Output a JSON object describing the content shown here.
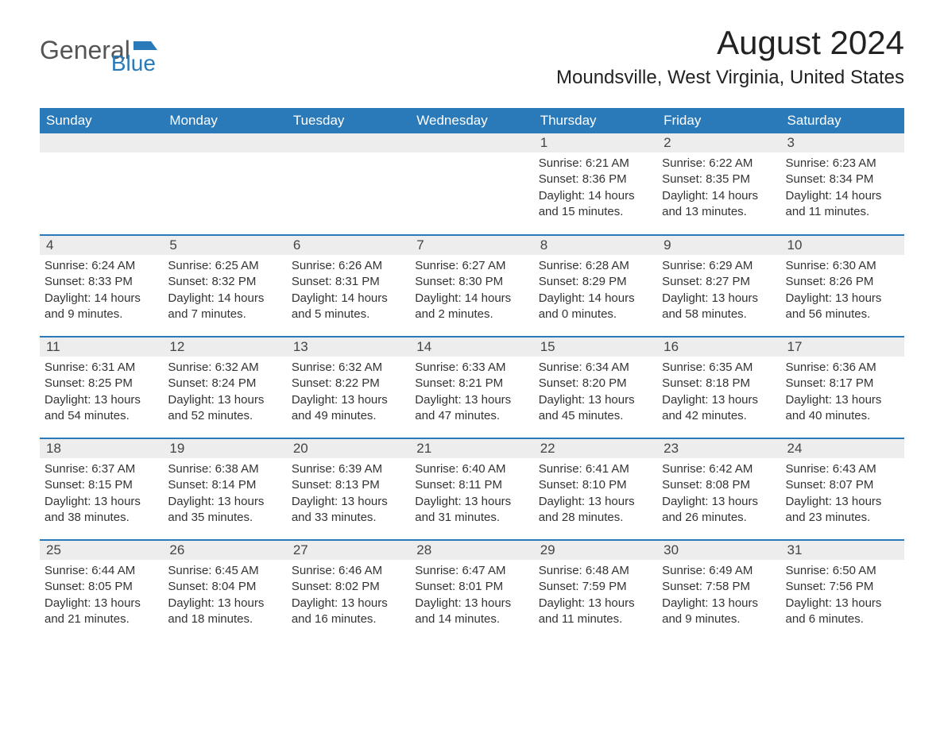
{
  "logo": {
    "text1": "General",
    "text2": "Blue"
  },
  "title": "August 2024",
  "location": "Moundsville, West Virginia, United States",
  "colors": {
    "header_bg": "#2a7ab9",
    "header_text": "#ffffff",
    "daynum_bg": "#ededed",
    "row_border": "#2a7ab9",
    "body_text": "#333333",
    "page_bg": "#ffffff"
  },
  "weekdays": [
    "Sunday",
    "Monday",
    "Tuesday",
    "Wednesday",
    "Thursday",
    "Friday",
    "Saturday"
  ],
  "weeks": [
    [
      null,
      null,
      null,
      null,
      {
        "n": "1",
        "sunrise": "Sunrise: 6:21 AM",
        "sunset": "Sunset: 8:36 PM",
        "daylight": "Daylight: 14 hours and 15 minutes."
      },
      {
        "n": "2",
        "sunrise": "Sunrise: 6:22 AM",
        "sunset": "Sunset: 8:35 PM",
        "daylight": "Daylight: 14 hours and 13 minutes."
      },
      {
        "n": "3",
        "sunrise": "Sunrise: 6:23 AM",
        "sunset": "Sunset: 8:34 PM",
        "daylight": "Daylight: 14 hours and 11 minutes."
      }
    ],
    [
      {
        "n": "4",
        "sunrise": "Sunrise: 6:24 AM",
        "sunset": "Sunset: 8:33 PM",
        "daylight": "Daylight: 14 hours and 9 minutes."
      },
      {
        "n": "5",
        "sunrise": "Sunrise: 6:25 AM",
        "sunset": "Sunset: 8:32 PM",
        "daylight": "Daylight: 14 hours and 7 minutes."
      },
      {
        "n": "6",
        "sunrise": "Sunrise: 6:26 AM",
        "sunset": "Sunset: 8:31 PM",
        "daylight": "Daylight: 14 hours and 5 minutes."
      },
      {
        "n": "7",
        "sunrise": "Sunrise: 6:27 AM",
        "sunset": "Sunset: 8:30 PM",
        "daylight": "Daylight: 14 hours and 2 minutes."
      },
      {
        "n": "8",
        "sunrise": "Sunrise: 6:28 AM",
        "sunset": "Sunset: 8:29 PM",
        "daylight": "Daylight: 14 hours and 0 minutes."
      },
      {
        "n": "9",
        "sunrise": "Sunrise: 6:29 AM",
        "sunset": "Sunset: 8:27 PM",
        "daylight": "Daylight: 13 hours and 58 minutes."
      },
      {
        "n": "10",
        "sunrise": "Sunrise: 6:30 AM",
        "sunset": "Sunset: 8:26 PM",
        "daylight": "Daylight: 13 hours and 56 minutes."
      }
    ],
    [
      {
        "n": "11",
        "sunrise": "Sunrise: 6:31 AM",
        "sunset": "Sunset: 8:25 PM",
        "daylight": "Daylight: 13 hours and 54 minutes."
      },
      {
        "n": "12",
        "sunrise": "Sunrise: 6:32 AM",
        "sunset": "Sunset: 8:24 PM",
        "daylight": "Daylight: 13 hours and 52 minutes."
      },
      {
        "n": "13",
        "sunrise": "Sunrise: 6:32 AM",
        "sunset": "Sunset: 8:22 PM",
        "daylight": "Daylight: 13 hours and 49 minutes."
      },
      {
        "n": "14",
        "sunrise": "Sunrise: 6:33 AM",
        "sunset": "Sunset: 8:21 PM",
        "daylight": "Daylight: 13 hours and 47 minutes."
      },
      {
        "n": "15",
        "sunrise": "Sunrise: 6:34 AM",
        "sunset": "Sunset: 8:20 PM",
        "daylight": "Daylight: 13 hours and 45 minutes."
      },
      {
        "n": "16",
        "sunrise": "Sunrise: 6:35 AM",
        "sunset": "Sunset: 8:18 PM",
        "daylight": "Daylight: 13 hours and 42 minutes."
      },
      {
        "n": "17",
        "sunrise": "Sunrise: 6:36 AM",
        "sunset": "Sunset: 8:17 PM",
        "daylight": "Daylight: 13 hours and 40 minutes."
      }
    ],
    [
      {
        "n": "18",
        "sunrise": "Sunrise: 6:37 AM",
        "sunset": "Sunset: 8:15 PM",
        "daylight": "Daylight: 13 hours and 38 minutes."
      },
      {
        "n": "19",
        "sunrise": "Sunrise: 6:38 AM",
        "sunset": "Sunset: 8:14 PM",
        "daylight": "Daylight: 13 hours and 35 minutes."
      },
      {
        "n": "20",
        "sunrise": "Sunrise: 6:39 AM",
        "sunset": "Sunset: 8:13 PM",
        "daylight": "Daylight: 13 hours and 33 minutes."
      },
      {
        "n": "21",
        "sunrise": "Sunrise: 6:40 AM",
        "sunset": "Sunset: 8:11 PM",
        "daylight": "Daylight: 13 hours and 31 minutes."
      },
      {
        "n": "22",
        "sunrise": "Sunrise: 6:41 AM",
        "sunset": "Sunset: 8:10 PM",
        "daylight": "Daylight: 13 hours and 28 minutes."
      },
      {
        "n": "23",
        "sunrise": "Sunrise: 6:42 AM",
        "sunset": "Sunset: 8:08 PM",
        "daylight": "Daylight: 13 hours and 26 minutes."
      },
      {
        "n": "24",
        "sunrise": "Sunrise: 6:43 AM",
        "sunset": "Sunset: 8:07 PM",
        "daylight": "Daylight: 13 hours and 23 minutes."
      }
    ],
    [
      {
        "n": "25",
        "sunrise": "Sunrise: 6:44 AM",
        "sunset": "Sunset: 8:05 PM",
        "daylight": "Daylight: 13 hours and 21 minutes."
      },
      {
        "n": "26",
        "sunrise": "Sunrise: 6:45 AM",
        "sunset": "Sunset: 8:04 PM",
        "daylight": "Daylight: 13 hours and 18 minutes."
      },
      {
        "n": "27",
        "sunrise": "Sunrise: 6:46 AM",
        "sunset": "Sunset: 8:02 PM",
        "daylight": "Daylight: 13 hours and 16 minutes."
      },
      {
        "n": "28",
        "sunrise": "Sunrise: 6:47 AM",
        "sunset": "Sunset: 8:01 PM",
        "daylight": "Daylight: 13 hours and 14 minutes."
      },
      {
        "n": "29",
        "sunrise": "Sunrise: 6:48 AM",
        "sunset": "Sunset: 7:59 PM",
        "daylight": "Daylight: 13 hours and 11 minutes."
      },
      {
        "n": "30",
        "sunrise": "Sunrise: 6:49 AM",
        "sunset": "Sunset: 7:58 PM",
        "daylight": "Daylight: 13 hours and 9 minutes."
      },
      {
        "n": "31",
        "sunrise": "Sunrise: 6:50 AM",
        "sunset": "Sunset: 7:56 PM",
        "daylight": "Daylight: 13 hours and 6 minutes."
      }
    ]
  ]
}
